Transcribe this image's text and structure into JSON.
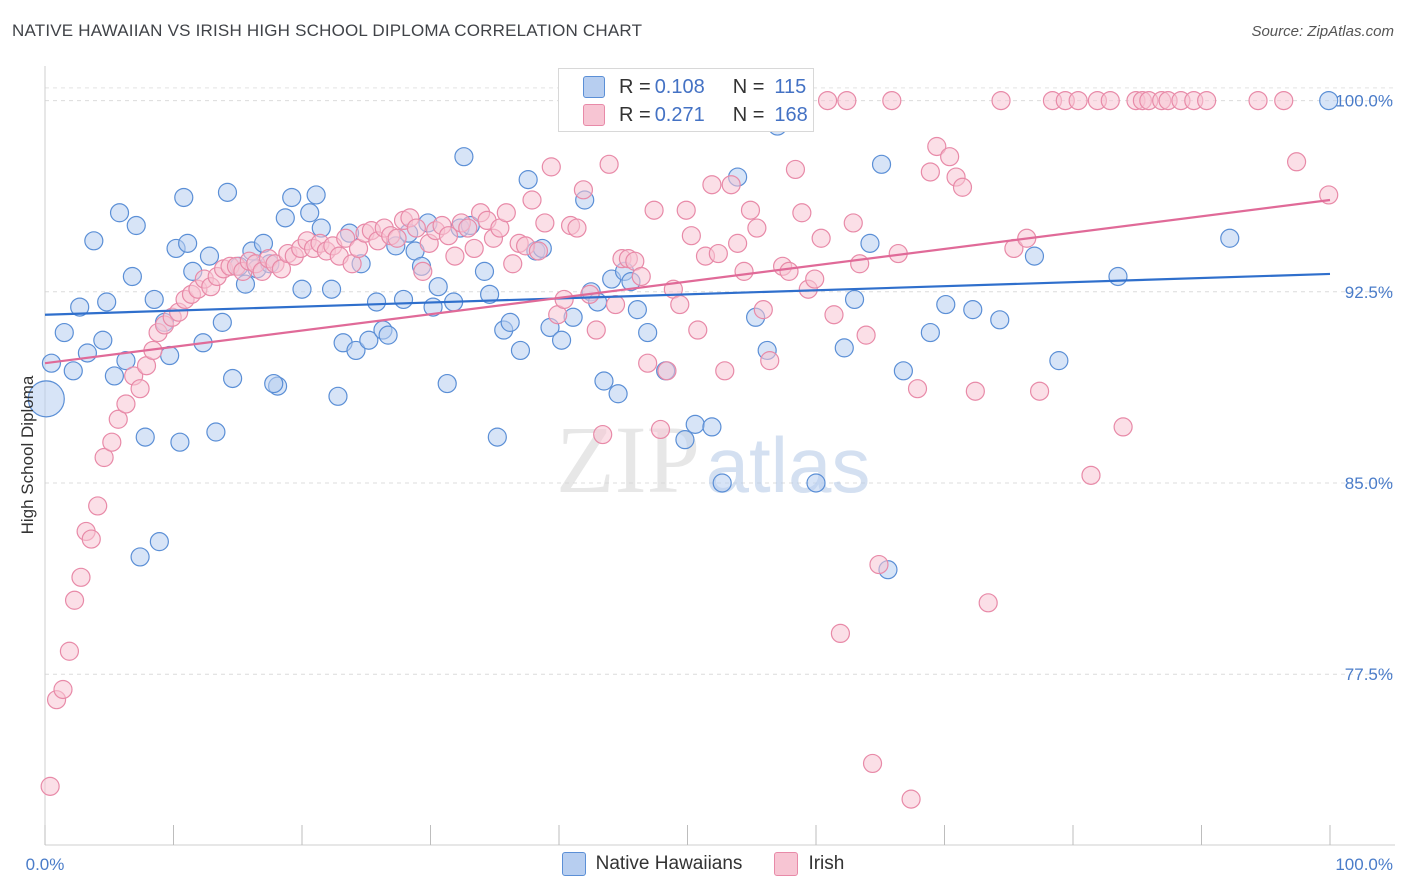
{
  "title": "NATIVE HAWAIIAN VS IRISH HIGH SCHOOL DIPLOMA CORRELATION CHART",
  "source": "Source: ZipAtlas.com",
  "watermark": {
    "zip": "ZIP",
    "atlas": "atlas"
  },
  "legend": {
    "r_label": "R =",
    "n_label": "N =",
    "rows": [
      {
        "r": "0.108",
        "n": "115"
      },
      {
        "r": "0.271",
        "n": "168"
      }
    ]
  },
  "colors": {
    "blue_fill": "#b7cef0",
    "blue_stroke": "#5b8fd6",
    "blue_line": "#2f6fcc",
    "pink_fill": "#f7c5d3",
    "pink_stroke": "#e88aa8",
    "pink_line": "#e06a98",
    "tick_label": "#4a7cc9"
  },
  "chart_data": {
    "type": "scatter",
    "title": "NATIVE HAWAIIAN VS IRISH HIGH SCHOOL DIPLOMA CORRELATION CHART",
    "xlabel": "",
    "ylabel": "High School Diploma",
    "xlim": [
      0,
      100
    ],
    "ylim": [
      70.8,
      101.2
    ],
    "x_tick_labels": [
      "0.0%",
      "100.0%"
    ],
    "y_ticks": [
      77.5,
      85.0,
      92.5,
      100.0
    ],
    "y_tick_labels": [
      "77.5%",
      "85.0%",
      "92.5%",
      "100.0%"
    ],
    "grid": "horizontal dashed",
    "legend_position": "top-center",
    "series": [
      {
        "name": "Native Hawaiians",
        "r": 0.108,
        "n": 115,
        "trend": {
          "x": [
            0,
            100
          ],
          "y": [
            91.6,
            93.2
          ]
        },
        "points": [
          [
            0.1,
            88.3
          ],
          [
            0.5,
            89.7
          ],
          [
            1.5,
            90.9
          ],
          [
            2.2,
            89.4
          ],
          [
            2.7,
            91.9
          ],
          [
            3.3,
            90.1
          ],
          [
            3.8,
            94.5
          ],
          [
            4.5,
            90.6
          ],
          [
            4.8,
            92.1
          ],
          [
            5.4,
            89.2
          ],
          [
            5.8,
            95.6
          ],
          [
            6.3,
            89.8
          ],
          [
            6.8,
            93.1
          ],
          [
            7.1,
            95.1
          ],
          [
            7.4,
            82.1
          ],
          [
            7.8,
            86.8
          ],
          [
            8.5,
            92.2
          ],
          [
            8.9,
            82.7
          ],
          [
            9.3,
            91.3
          ],
          [
            9.7,
            90.0
          ],
          [
            10.2,
            94.2
          ],
          [
            10.5,
            86.6
          ],
          [
            10.8,
            96.2
          ],
          [
            11.1,
            94.4
          ],
          [
            11.5,
            93.3
          ],
          [
            12.3,
            90.5
          ],
          [
            12.8,
            93.9
          ],
          [
            13.3,
            87.0
          ],
          [
            13.8,
            91.3
          ],
          [
            14.2,
            96.4
          ],
          [
            14.6,
            89.1
          ],
          [
            15.1,
            93.5
          ],
          [
            15.6,
            92.8
          ],
          [
            16.1,
            94.1
          ],
          [
            16.5,
            93.4
          ],
          [
            17.0,
            94.4
          ],
          [
            17.5,
            93.6
          ],
          [
            18.1,
            88.8
          ],
          [
            18.7,
            95.4
          ],
          [
            19.2,
            96.2
          ],
          [
            20.0,
            92.6
          ],
          [
            20.6,
            95.6
          ],
          [
            21.1,
            96.3
          ],
          [
            21.5,
            95.0
          ],
          [
            22.3,
            92.6
          ],
          [
            22.8,
            88.4
          ],
          [
            23.2,
            90.5
          ],
          [
            23.7,
            94.8
          ],
          [
            24.2,
            90.2
          ],
          [
            24.6,
            93.6
          ],
          [
            25.2,
            90.6
          ],
          [
            25.8,
            92.1
          ],
          [
            26.3,
            91.0
          ],
          [
            26.7,
            90.8
          ],
          [
            27.3,
            94.3
          ],
          [
            27.9,
            92.2
          ],
          [
            28.3,
            94.8
          ],
          [
            28.8,
            94.1
          ],
          [
            29.3,
            93.5
          ],
          [
            29.8,
            95.2
          ],
          [
            30.2,
            91.9
          ],
          [
            30.6,
            92.7
          ],
          [
            31.3,
            88.9
          ],
          [
            31.8,
            92.1
          ],
          [
            32.3,
            95.0
          ],
          [
            32.6,
            97.8
          ],
          [
            33.1,
            95.1
          ],
          [
            34.2,
            93.3
          ],
          [
            34.6,
            92.4
          ],
          [
            35.2,
            86.8
          ],
          [
            35.7,
            91.0
          ],
          [
            36.2,
            91.3
          ],
          [
            37.0,
            90.2
          ],
          [
            37.6,
            96.9
          ],
          [
            38.2,
            94.1
          ],
          [
            38.7,
            94.2
          ],
          [
            39.3,
            91.1
          ],
          [
            40.2,
            90.6
          ],
          [
            41.1,
            91.5
          ],
          [
            42.0,
            96.1
          ],
          [
            42.5,
            92.5
          ],
          [
            43.0,
            92.1
          ],
          [
            43.5,
            89.0
          ],
          [
            44.1,
            93.0
          ],
          [
            44.6,
            88.5
          ],
          [
            45.1,
            93.3
          ],
          [
            45.6,
            92.9
          ],
          [
            46.1,
            91.8
          ],
          [
            46.9,
            90.9
          ],
          [
            48.3,
            89.4
          ],
          [
            49.8,
            86.7
          ],
          [
            50.6,
            87.3
          ],
          [
            51.9,
            87.2
          ],
          [
            52.7,
            85.0
          ],
          [
            53.9,
            97.0
          ],
          [
            55.3,
            91.5
          ],
          [
            56.2,
            90.2
          ],
          [
            57.0,
            99.0
          ],
          [
            60.0,
            85.0
          ],
          [
            62.2,
            90.3
          ],
          [
            63.0,
            92.2
          ],
          [
            64.2,
            94.4
          ],
          [
            65.1,
            97.5
          ],
          [
            65.6,
            81.6
          ],
          [
            66.8,
            89.4
          ],
          [
            68.9,
            90.9
          ],
          [
            70.1,
            92.0
          ],
          [
            72.2,
            91.8
          ],
          [
            74.3,
            91.4
          ],
          [
            77.0,
            93.9
          ],
          [
            78.9,
            89.8
          ],
          [
            83.5,
            93.1
          ],
          [
            92.2,
            94.6
          ],
          [
            99.9,
            100.0
          ],
          [
            17.8,
            88.9
          ]
        ]
      },
      {
        "name": "Irish",
        "r": 0.271,
        "n": 168,
        "trend": {
          "x": [
            0,
            100
          ],
          "y": [
            89.7,
            96.1
          ]
        },
        "points": [
          [
            0.4,
            73.1
          ],
          [
            0.9,
            76.5
          ],
          [
            1.4,
            76.9
          ],
          [
            1.9,
            78.4
          ],
          [
            2.3,
            80.4
          ],
          [
            2.8,
            81.3
          ],
          [
            3.2,
            83.1
          ],
          [
            3.6,
            82.8
          ],
          [
            4.1,
            84.1
          ],
          [
            4.6,
            86.0
          ],
          [
            5.2,
            86.6
          ],
          [
            5.7,
            87.5
          ],
          [
            6.3,
            88.1
          ],
          [
            6.9,
            89.2
          ],
          [
            7.4,
            88.7
          ],
          [
            7.9,
            89.6
          ],
          [
            8.4,
            90.2
          ],
          [
            8.8,
            90.9
          ],
          [
            9.3,
            91.2
          ],
          [
            9.9,
            91.5
          ],
          [
            10.4,
            91.7
          ],
          [
            10.9,
            92.2
          ],
          [
            11.4,
            92.4
          ],
          [
            11.9,
            92.6
          ],
          [
            12.4,
            93.0
          ],
          [
            12.9,
            92.7
          ],
          [
            13.4,
            93.1
          ],
          [
            13.9,
            93.4
          ],
          [
            14.4,
            93.5
          ],
          [
            14.9,
            93.5
          ],
          [
            15.4,
            93.3
          ],
          [
            15.9,
            93.7
          ],
          [
            16.4,
            93.6
          ],
          [
            16.9,
            93.3
          ],
          [
            17.4,
            93.8
          ],
          [
            17.9,
            93.6
          ],
          [
            18.4,
            93.4
          ],
          [
            18.9,
            94.0
          ],
          [
            19.4,
            93.9
          ],
          [
            19.9,
            94.2
          ],
          [
            20.4,
            94.5
          ],
          [
            20.9,
            94.2
          ],
          [
            21.4,
            94.4
          ],
          [
            21.9,
            94.1
          ],
          [
            22.4,
            94.3
          ],
          [
            22.9,
            93.9
          ],
          [
            23.4,
            94.6
          ],
          [
            23.9,
            93.6
          ],
          [
            24.4,
            94.2
          ],
          [
            24.9,
            94.8
          ],
          [
            25.4,
            94.9
          ],
          [
            25.9,
            94.5
          ],
          [
            26.4,
            95.0
          ],
          [
            26.9,
            94.7
          ],
          [
            27.4,
            94.6
          ],
          [
            27.9,
            95.3
          ],
          [
            28.4,
            95.4
          ],
          [
            28.9,
            95.0
          ],
          [
            29.4,
            93.3
          ],
          [
            29.9,
            94.4
          ],
          [
            30.4,
            94.9
          ],
          [
            30.9,
            95.1
          ],
          [
            31.4,
            94.7
          ],
          [
            31.9,
            93.9
          ],
          [
            32.4,
            95.2
          ],
          [
            32.9,
            95.0
          ],
          [
            33.4,
            94.2
          ],
          [
            33.9,
            95.6
          ],
          [
            34.4,
            95.3
          ],
          [
            34.9,
            94.6
          ],
          [
            35.4,
            95.0
          ],
          [
            35.9,
            95.6
          ],
          [
            36.4,
            93.6
          ],
          [
            36.9,
            94.4
          ],
          [
            37.4,
            94.3
          ],
          [
            37.9,
            96.1
          ],
          [
            38.4,
            94.1
          ],
          [
            38.9,
            95.2
          ],
          [
            39.4,
            97.4
          ],
          [
            39.9,
            91.6
          ],
          [
            40.4,
            92.2
          ],
          [
            40.9,
            95.1
          ],
          [
            41.4,
            95.0
          ],
          [
            41.9,
            96.5
          ],
          [
            42.4,
            92.4
          ],
          [
            42.9,
            91.0
          ],
          [
            43.4,
            86.9
          ],
          [
            43.9,
            97.5
          ],
          [
            44.4,
            92.0
          ],
          [
            44.9,
            93.8
          ],
          [
            45.4,
            93.8
          ],
          [
            45.9,
            93.7
          ],
          [
            46.4,
            93.1
          ],
          [
            46.9,
            89.7
          ],
          [
            47.4,
            95.7
          ],
          [
            47.9,
            87.1
          ],
          [
            48.4,
            89.4
          ],
          [
            48.9,
            92.6
          ],
          [
            49.4,
            92.0
          ],
          [
            49.9,
            95.7
          ],
          [
            50.3,
            94.7
          ],
          [
            50.8,
            91.0
          ],
          [
            51.4,
            93.9
          ],
          [
            51.9,
            96.7
          ],
          [
            52.4,
            94.0
          ],
          [
            52.9,
            89.4
          ],
          [
            53.4,
            96.7
          ],
          [
            53.9,
            94.4
          ],
          [
            54.4,
            93.3
          ],
          [
            54.9,
            95.7
          ],
          [
            55.4,
            95.0
          ],
          [
            55.9,
            91.8
          ],
          [
            56.4,
            89.8
          ],
          [
            56.9,
            100.0
          ],
          [
            57.4,
            93.5
          ],
          [
            57.9,
            93.3
          ],
          [
            58.4,
            97.3
          ],
          [
            58.9,
            95.6
          ],
          [
            59.4,
            92.6
          ],
          [
            59.9,
            93.0
          ],
          [
            60.4,
            94.6
          ],
          [
            60.9,
            100.0
          ],
          [
            61.4,
            91.6
          ],
          [
            61.9,
            79.1
          ],
          [
            62.4,
            100.0
          ],
          [
            62.9,
            95.2
          ],
          [
            63.4,
            93.6
          ],
          [
            63.9,
            90.8
          ],
          [
            64.4,
            74.0
          ],
          [
            64.9,
            81.8
          ],
          [
            65.9,
            100.0
          ],
          [
            66.4,
            94.0
          ],
          [
            67.4,
            72.6
          ],
          [
            67.9,
            88.7
          ],
          [
            68.9,
            97.2
          ],
          [
            69.4,
            98.2
          ],
          [
            70.4,
            97.8
          ],
          [
            70.9,
            97.0
          ],
          [
            71.4,
            96.6
          ],
          [
            72.4,
            88.6
          ],
          [
            73.4,
            80.3
          ],
          [
            74.4,
            100.0
          ],
          [
            75.4,
            94.2
          ],
          [
            76.4,
            94.6
          ],
          [
            77.4,
            88.6
          ],
          [
            78.4,
            100.0
          ],
          [
            79.4,
            100.0
          ],
          [
            80.4,
            100.0
          ],
          [
            81.4,
            85.3
          ],
          [
            81.9,
            100.0
          ],
          [
            82.9,
            100.0
          ],
          [
            83.9,
            87.2
          ],
          [
            84.9,
            100.0
          ],
          [
            85.4,
            100.0
          ],
          [
            85.9,
            100.0
          ],
          [
            86.9,
            100.0
          ],
          [
            87.4,
            100.0
          ],
          [
            88.4,
            100.0
          ],
          [
            89.4,
            100.0
          ],
          [
            90.4,
            100.0
          ],
          [
            94.4,
            100.0
          ],
          [
            96.4,
            100.0
          ],
          [
            97.4,
            97.6
          ],
          [
            99.9,
            96.3
          ],
          [
            50.0,
            100.0
          ],
          [
            53.9,
            100.0
          ],
          [
            55.4,
            100.0
          ],
          [
            58.9,
            100.0
          ]
        ]
      }
    ]
  }
}
